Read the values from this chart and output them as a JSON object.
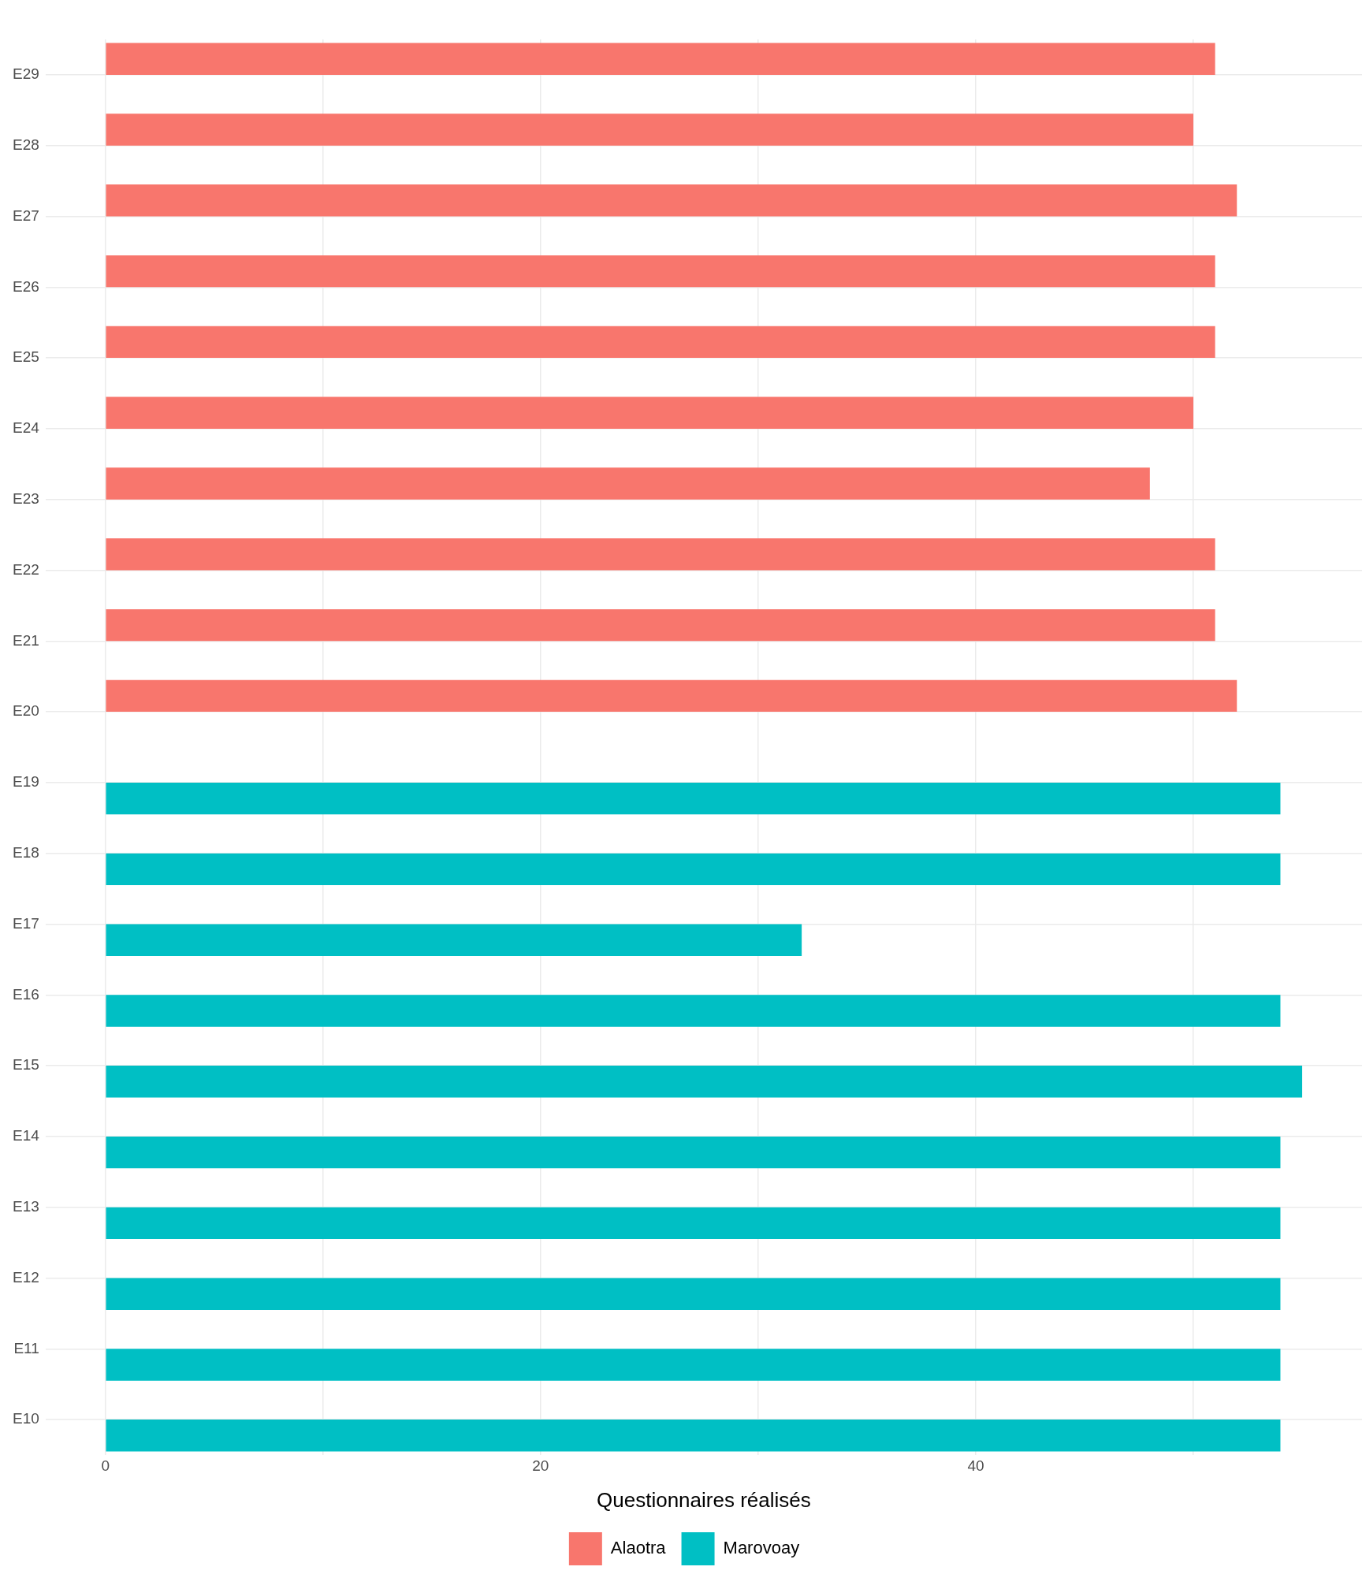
{
  "chart_data": {
    "type": "bar",
    "orientation": "horizontal",
    "xlabel": "Questionnaires réalisés",
    "categories": [
      "E29",
      "E28",
      "E27",
      "E26",
      "E25",
      "E24",
      "E23",
      "E22",
      "E21",
      "E20",
      "E19",
      "E18",
      "E17",
      "E16",
      "E15",
      "E14",
      "E13",
      "E12",
      "E11",
      "E10"
    ],
    "series": [
      {
        "name": "Alaotra",
        "color": "#f8766d",
        "values": [
          51,
          50,
          52,
          51,
          51,
          50,
          48,
          51,
          51,
          52,
          null,
          null,
          null,
          null,
          null,
          null,
          null,
          null,
          null,
          null
        ]
      },
      {
        "name": "Marovoay",
        "color": "#00bfc4",
        "values": [
          null,
          null,
          null,
          null,
          null,
          null,
          null,
          null,
          null,
          null,
          54,
          54,
          32,
          54,
          55,
          54,
          54,
          54,
          54,
          54
        ]
      }
    ],
    "xlim": [
      -2.75,
      57.75
    ],
    "xticks": [
      0,
      {
        "value": 10,
        "label": null
      },
      20,
      {
        "value": 30,
        "label": null
      },
      40,
      {
        "value": 50,
        "label": null
      }
    ],
    "grid": true,
    "legend": "bottom"
  }
}
